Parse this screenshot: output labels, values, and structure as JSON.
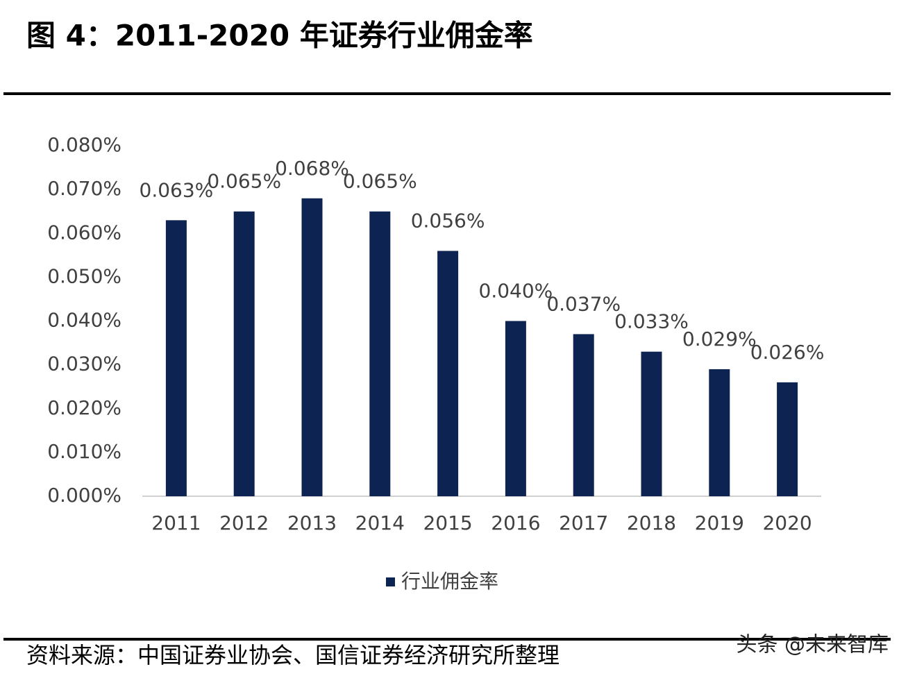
{
  "chart_data": {
    "type": "bar",
    "title": "图 4：2011-2020 年证券行业佣金率",
    "categories": [
      "2011",
      "2012",
      "2013",
      "2014",
      "2015",
      "2016",
      "2017",
      "2018",
      "2019",
      "2020"
    ],
    "series": [
      {
        "name": "行业佣金率",
        "color": "#0d2352",
        "values": [
          0.063,
          0.065,
          0.068,
          0.065,
          0.056,
          0.04,
          0.037,
          0.033,
          0.029,
          0.026
        ],
        "value_labels": [
          "0.063%",
          "0.065%",
          "0.068%",
          "0.065%",
          "0.056%",
          "0.040%",
          "0.037%",
          "0.033%",
          "0.029%",
          "0.026%"
        ]
      }
    ],
    "ylim": [
      0,
      0.08
    ],
    "yticks": [
      {
        "value": 0,
        "label": "0.000%"
      },
      {
        "value": 0.01,
        "label": "0.010%"
      },
      {
        "value": 0.02,
        "label": "0.020%"
      },
      {
        "value": 0.03,
        "label": "0.030%"
      },
      {
        "value": 0.04,
        "label": "0.040%"
      },
      {
        "value": 0.05,
        "label": "0.050%"
      },
      {
        "value": 0.06,
        "label": "0.060%"
      },
      {
        "value": 0.07,
        "label": "0.070%"
      },
      {
        "value": 0.08,
        "label": "0.080%"
      }
    ],
    "grid": false,
    "legend": "bottom",
    "source": "资料来源：中国证券业协会、国信证券经济研究所整理",
    "watermark": "头条 @未来智库"
  }
}
